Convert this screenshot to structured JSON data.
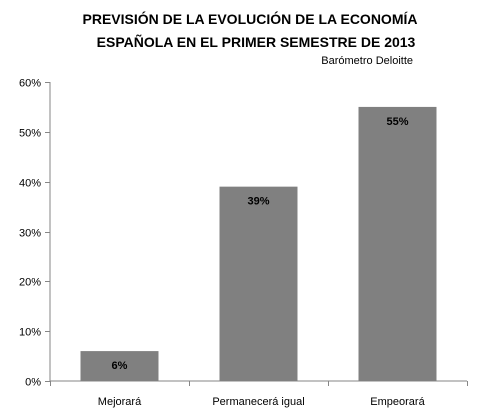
{
  "chart_data": {
    "type": "bar",
    "title_lines": [
      "PREVISIÓN DE LA EVOLUCIÓN DE LA ECONOMÍA",
      "ESPAÑOLA EN EL PRIMER SEMESTRE DE 2013"
    ],
    "subtitle": "Barómetro Deloitte",
    "categories": [
      "Mejorará",
      "Permanecerá igual",
      "Empeorará"
    ],
    "values": [
      6,
      39,
      55
    ],
    "value_labels": [
      "6%",
      "39%",
      "55%"
    ],
    "ylim": [
      0,
      60
    ],
    "yticks": [
      0,
      10,
      20,
      30,
      40,
      50,
      60
    ],
    "ytick_labels": [
      "0%",
      "10%",
      "20%",
      "30%",
      "40%",
      "50%",
      "60%"
    ],
    "xlabel": "",
    "ylabel": "",
    "grid": false,
    "colors": {
      "bar": "#808080",
      "axis": "#868686",
      "text": "#000000"
    }
  }
}
